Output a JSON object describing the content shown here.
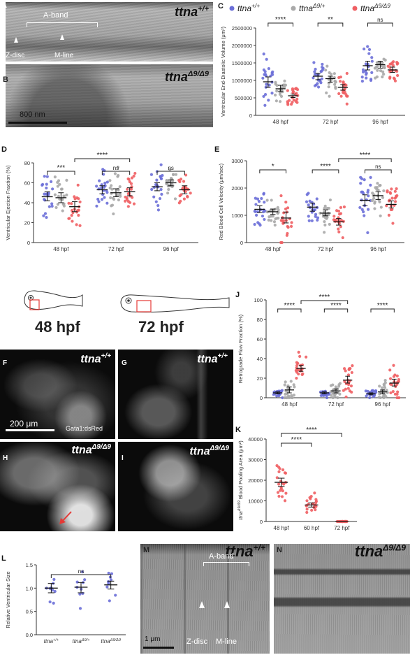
{
  "panels": {
    "a": {
      "letter": "A",
      "genotype": "ttna",
      "superscript": "+/+",
      "aband": "A-band",
      "zdisc": "Z-disc",
      "mline": "M-line"
    },
    "b": {
      "letter": "B",
      "genotype": "ttna",
      "superscript": "Δ9/Δ9",
      "scale": "800 nm"
    },
    "f": {
      "letter": "F",
      "genotype": "ttna",
      "superscript": "+/+",
      "scale": "200 μm",
      "marker": "Gata1:dsRed"
    },
    "g": {
      "letter": "G",
      "genotype": "ttna",
      "superscript": "+/+"
    },
    "h": {
      "letter": "H",
      "genotype": "ttna",
      "superscript": "Δ9/Δ9"
    },
    "i": {
      "letter": "I",
      "genotype": "ttna",
      "superscript": "Δ9/Δ9"
    },
    "m": {
      "letter": "M",
      "genotype": "ttna",
      "superscript": "+/+",
      "aband": "A-band",
      "zdisc": "Z-disc",
      "mline": "M-line",
      "scale": "1 μm"
    },
    "n": {
      "letter": "N",
      "genotype": "ttna",
      "superscript": "Δ9/Δ9"
    },
    "stage1": "48 hpf",
    "stage2": "72 hpf"
  },
  "colors": {
    "wt": "#6b6fd8",
    "het": "#a9a9a9",
    "mut": "#ef5f63"
  },
  "chart_data": [
    {
      "id": "C",
      "type": "scatter",
      "ylabel": "Ventricular End-Diastolic Volume (μm³)",
      "categories": [
        "48 hpf",
        "72 hpf",
        "96 hpf"
      ],
      "legend": [
        {
          "base": "ttna",
          "sup": "+/+"
        },
        {
          "base": "ttna",
          "sup": "Δ9/+"
        },
        {
          "base": "ttna",
          "sup": "Δ9/Δ9"
        }
      ],
      "ylim": [
        0,
        2500000
      ],
      "yticks": [
        "0",
        "500000",
        "1000000",
        "1500000",
        "2000000",
        "2500000"
      ],
      "series": [
        {
          "mean": [
            960000,
            1120000,
            1420000
          ],
          "ci": [
            [
              800000,
              1100000
            ],
            [
              1020000,
              1200000
            ],
            [
              1300000,
              1550000
            ]
          ]
        },
        {
          "mean": [
            760000,
            1050000,
            1450000
          ],
          "ci": [
            [
              680000,
              860000
            ],
            [
              950000,
              1120000
            ],
            [
              1350000,
              1550000
            ]
          ]
        },
        {
          "mean": [
            560000,
            800000,
            1300000
          ],
          "ci": [
            [
              510000,
              610000
            ],
            [
              720000,
              880000
            ],
            [
              1230000,
              1380000
            ]
          ]
        }
      ],
      "sig": [
        {
          "from": [
            0,
            0
          ],
          "to": [
            0,
            2
          ],
          "label": "****"
        },
        {
          "from": [
            1,
            0
          ],
          "to": [
            1,
            2
          ],
          "label": "**"
        },
        {
          "from": [
            2,
            0
          ],
          "to": [
            2,
            2
          ],
          "label": "ns"
        }
      ]
    },
    {
      "id": "D",
      "type": "scatter",
      "ylabel": "Ventricular Ejection Fraction (%)",
      "categories": [
        "48 hpf",
        "72 hpf",
        "96 hpf"
      ],
      "ylim": [
        0,
        80
      ],
      "yticks": [
        "0",
        "20",
        "40",
        "60",
        "80"
      ],
      "series": [
        {
          "mean": [
            46,
            53,
            56
          ],
          "ci": [
            [
              42,
              51
            ],
            [
              49,
              57
            ],
            [
              52,
              60
            ]
          ]
        },
        {
          "mean": [
            45,
            50,
            60
          ],
          "ci": [
            [
              40,
              50
            ],
            [
              46,
              54
            ],
            [
              57,
              63
            ]
          ]
        },
        {
          "mean": [
            36,
            51,
            53
          ],
          "ci": [
            [
              31,
              41
            ],
            [
              47,
              55
            ],
            [
              49,
              57
            ]
          ]
        }
      ],
      "sig": [
        {
          "from": [
            0,
            0
          ],
          "to": [
            0,
            2
          ],
          "label": "***"
        },
        {
          "from": [
            1,
            0
          ],
          "to": [
            1,
            2
          ],
          "label": "ns"
        },
        {
          "from": [
            2,
            0
          ],
          "to": [
            2,
            2
          ],
          "label": "ns"
        },
        {
          "from": [
            0,
            2
          ],
          "to": [
            1,
            2
          ],
          "label": "****",
          "top": true
        }
      ]
    },
    {
      "id": "E",
      "type": "scatter",
      "ylabel": "Red Blood Cell Velocity (μm/sec)",
      "categories": [
        "48 hpf",
        "72 hpf",
        "96 hpf"
      ],
      "ylim": [
        0,
        3000
      ],
      "yticks": [
        "0",
        "1000",
        "2000",
        "3000"
      ],
      "series": [
        {
          "mean": [
            1220,
            1300,
            1550
          ],
          "ci": [
            [
              1100,
              1350
            ],
            [
              1150,
              1450
            ],
            [
              1350,
              1750
            ]
          ]
        },
        {
          "mean": [
            1130,
            1080,
            1720
          ],
          "ci": [
            [
              1030,
              1230
            ],
            [
              980,
              1200
            ],
            [
              1580,
              1860
            ]
          ]
        },
        {
          "mean": [
            900,
            760,
            1400
          ],
          "ci": [
            [
              720,
              1120
            ],
            [
              640,
              880
            ],
            [
              1270,
              1530
            ]
          ]
        }
      ],
      "sig": [
        {
          "from": [
            0,
            0
          ],
          "to": [
            0,
            2
          ],
          "label": "*"
        },
        {
          "from": [
            1,
            0
          ],
          "to": [
            1,
            2
          ],
          "label": "****"
        },
        {
          "from": [
            2,
            0
          ],
          "to": [
            2,
            2
          ],
          "label": "ns"
        },
        {
          "from": [
            1,
            2
          ],
          "to": [
            2,
            2
          ],
          "label": "****",
          "top": true
        }
      ]
    },
    {
      "id": "J",
      "type": "scatter",
      "ylabel": "Retrograde Flow Fraction (%)",
      "categories": [
        "48 hpf",
        "72 hpf",
        "96 hpf"
      ],
      "ylim": [
        0,
        100
      ],
      "yticks": [
        "0",
        "20",
        "40",
        "60",
        "80",
        "100"
      ],
      "series": [
        {
          "mean": [
            5,
            5,
            4
          ],
          "ci": [
            [
              4,
              6
            ],
            [
              4,
              6
            ],
            [
              3,
              5
            ]
          ]
        },
        {
          "mean": [
            8,
            7,
            6
          ],
          "ci": [
            [
              5,
              11
            ],
            [
              5,
              9
            ],
            [
              4,
              8
            ]
          ]
        },
        {
          "mean": [
            30,
            18,
            15
          ],
          "ci": [
            [
              27,
              33
            ],
            [
              15,
              22
            ],
            [
              12,
              19
            ]
          ]
        }
      ],
      "sig": [
        {
          "from": [
            0,
            0
          ],
          "to": [
            0,
            2
          ],
          "label": "****"
        },
        {
          "from": [
            1,
            0
          ],
          "to": [
            1,
            2
          ],
          "label": "****"
        },
        {
          "from": [
            2,
            0
          ],
          "to": [
            2,
            2
          ],
          "label": "****"
        },
        {
          "from": [
            0,
            2
          ],
          "to": [
            1,
            2
          ],
          "label": "****",
          "top": true
        }
      ]
    },
    {
      "id": "K",
      "type": "scatter",
      "ylabel": "Blood Pooling Area (μm²)",
      "ylabel_prefix": {
        "base": "ttna",
        "sup": "Δ9/Δ9"
      },
      "categories": [
        "48 hpf",
        "60 hpf",
        "72 hpf"
      ],
      "ylim": [
        0,
        40000
      ],
      "yticks": [
        "0",
        "10000",
        "20000",
        "30000",
        "40000"
      ],
      "series": [
        {
          "mean": [
            19000,
            8000,
            0
          ],
          "ci": [
            [
              17000,
              21000
            ],
            [
              7000,
              9000
            ],
            [
              0,
              0
            ]
          ]
        }
      ],
      "sig": [
        {
          "from": [
            0,
            0
          ],
          "to": [
            1,
            0
          ],
          "label": "****"
        },
        {
          "from": [
            0,
            0
          ],
          "to": [
            2,
            0
          ],
          "label": "****",
          "top": true
        }
      ]
    },
    {
      "id": "L",
      "type": "scatter",
      "ylabel": "Relative Ventricular Size",
      "categories": [
        {
          "base": "ttna",
          "sup": "+/+"
        },
        {
          "base": "ttna",
          "sup": "Δ9/+"
        },
        {
          "base": "ttna",
          "sup": "Δ9/Δ9"
        }
      ],
      "ylim": [
        0,
        1.5
      ],
      "yticks": [
        "0.0",
        "0.5",
        "1.0",
        "1.5"
      ],
      "series": [
        {
          "mean": [
            1.0,
            1.02,
            1.07
          ],
          "ci": [
            [
              0.9,
              1.1
            ],
            [
              0.9,
              1.12
            ],
            [
              0.98,
              1.15
            ]
          ]
        }
      ],
      "sig": [
        {
          "from": [
            0,
            0
          ],
          "to": [
            2,
            0
          ],
          "label": "ns"
        }
      ]
    }
  ]
}
